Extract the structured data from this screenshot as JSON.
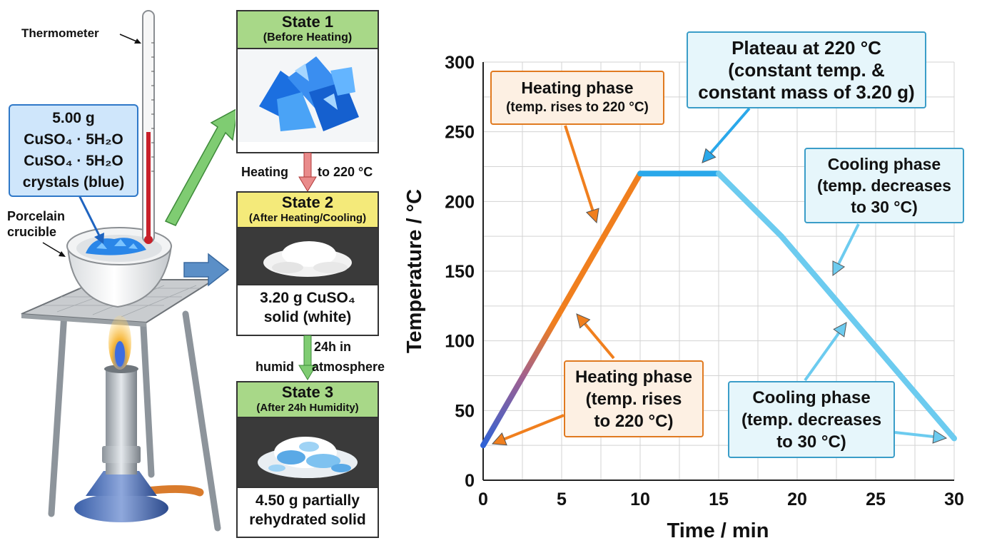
{
  "apparatus": {
    "thermometer_label": "Thermometer",
    "crucible_label_line1": "Porcelain",
    "crucible_label_line2": "crucible",
    "sample_mass": "5.00 g",
    "sample_formula_line1": "CuSO₄ · 5H₂O",
    "sample_formula_line2": "CuSO₄ · 5H₂O",
    "sample_description": "crystals (blue)"
  },
  "process": {
    "heating_label": "Heating",
    "heating_target": "to 220 °C",
    "humid_line1": "24h in",
    "humid_label_a": "humid",
    "humid_label_b": "atmosphere"
  },
  "states": [
    {
      "title": "State 1",
      "subtitle": "(Before Heating)",
      "header_color": "#a8d888"
    },
    {
      "title": "State 2",
      "subtitle": "(After Heating/Cooling)",
      "header_color": "#f4ea7a",
      "footer_line1": "3.20 g CuSO₄",
      "footer_line2": "solid (white)"
    },
    {
      "title": "State 3",
      "subtitle": "(After 24h Humidity)",
      "header_color": "#a8d888",
      "footer_line1": "4.50 g partially",
      "footer_line2": "rehydrated solid"
    }
  ],
  "chart_data": {
    "type": "line",
    "title": "",
    "xlabel": "Time / min",
    "ylabel": "Temperature / °C",
    "xlim": [
      0,
      30
    ],
    "ylim": [
      0,
      300
    ],
    "xticks": [
      0,
      5,
      10,
      15,
      20,
      25,
      30
    ],
    "yticks": [
      0,
      50,
      100,
      150,
      200,
      250,
      300
    ],
    "grid": true,
    "series": [
      {
        "points": [
          [
            0,
            25
          ],
          [
            10,
            220
          ]
        ],
        "color": "#f07f1e"
      },
      {
        "points": [
          [
            10,
            220
          ],
          [
            15,
            220
          ]
        ],
        "color": "#2aa8ea"
      },
      {
        "points": [
          [
            15,
            220
          ],
          [
            19,
            175
          ],
          [
            30,
            30
          ]
        ],
        "color": "#6ccbef"
      }
    ]
  },
  "callouts": {
    "plateau": [
      "Plateau at 220 °C",
      "(constant temp. &",
      "constant mass of 3.20 g)"
    ],
    "heating_top": [
      "Heating phase",
      "(temp. rises to 220 °C)"
    ],
    "heating_bottom": [
      "Heating phase",
      "(temp. rises",
      "to 220 °C)"
    ],
    "cooling_right": [
      "Cooling phase",
      "(temp. decreases",
      "to 30 °C)"
    ],
    "cooling_bottom": [
      "Cooling phase",
      "(temp. decreases",
      "to 30 °C)"
    ]
  },
  "colors": {
    "heating": "#f07f1e",
    "plateau": "#2aa8ea",
    "cooling": "#6ccbef",
    "state_green": "#a8d888",
    "state_yellow": "#f4ea7a",
    "callout_orange_bg": "#fdf0e3",
    "callout_blue_bg": "#e6f6fb"
  }
}
